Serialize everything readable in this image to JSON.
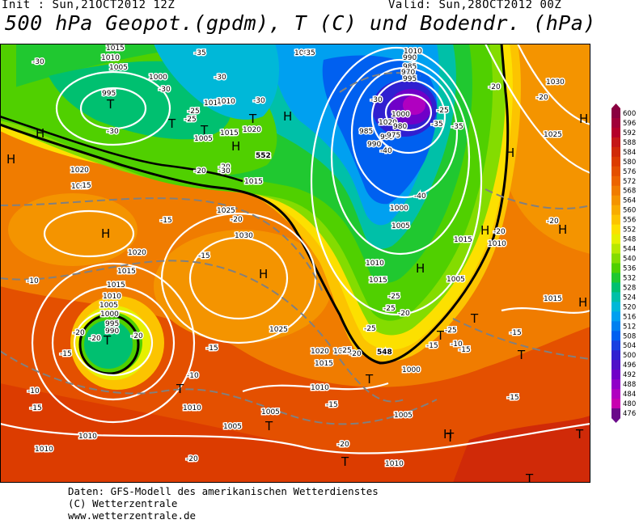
{
  "header": {
    "init": "Init : Sun,21OCT2012 12Z",
    "valid": "Valid: Sun,28OCT2012 00Z",
    "title": "500 hPa Geopot.(gpdm), T (C) und Bodendr. (hPa)"
  },
  "footer": {
    "line1": "Daten: GFS-Modell des amerikanischen Wetterdienstes",
    "line2": "(C) Wetterzentrale",
    "line3": "www.wetterzentrale.de"
  },
  "legend": {
    "labels": [
      "600",
      "596",
      "592",
      "588",
      "584",
      "580",
      "576",
      "572",
      "568",
      "564",
      "560",
      "556",
      "552",
      "548",
      "544",
      "540",
      "536",
      "532",
      "528",
      "524",
      "520",
      "516",
      "512",
      "508",
      "504",
      "500",
      "496",
      "492",
      "488",
      "484",
      "480",
      "476"
    ],
    "colors": [
      "#8a0040",
      "#a00038",
      "#b4002a",
      "#c41818",
      "#d02a08",
      "#dc3c00",
      "#e45000",
      "#ec6400",
      "#f07c00",
      "#f49400",
      "#f8ac00",
      "#fcc400",
      "#fce000",
      "#e6f000",
      "#b8e800",
      "#84dc00",
      "#50d000",
      "#20c830",
      "#00c070",
      "#00c0a8",
      "#00b8d8",
      "#00a0f0",
      "#0080f0",
      "#0060f0",
      "#1840e0",
      "#3020d0",
      "#5010c8",
      "#7000c8",
      "#9000c8",
      "#b000c0",
      "#c800b0",
      "#6a0a8a"
    ]
  },
  "map": {
    "pressure_systems": [
      {
        "type": "T",
        "label": "T"
      },
      {
        "type": "T",
        "label": "T"
      },
      {
        "type": "T",
        "label": "T"
      },
      {
        "type": "T",
        "label": "T"
      },
      {
        "type": "T",
        "label": "T"
      },
      {
        "type": "T",
        "label": "T"
      },
      {
        "type": "T",
        "label": "T"
      },
      {
        "type": "T",
        "label": "T"
      },
      {
        "type": "T",
        "label": "T"
      },
      {
        "type": "T",
        "label": "T"
      },
      {
        "type": "T",
        "label": "T"
      },
      {
        "type": "T",
        "label": "T"
      },
      {
        "type": "T",
        "label": "T"
      },
      {
        "type": "T",
        "label": "T"
      },
      {
        "type": "T",
        "label": "T"
      },
      {
        "type": "H",
        "label": "H"
      },
      {
        "type": "H",
        "label": "H"
      },
      {
        "type": "H",
        "label": "H"
      },
      {
        "type": "H",
        "label": "H"
      },
      {
        "type": "H",
        "label": "H"
      },
      {
        "type": "H",
        "label": "H"
      },
      {
        "type": "H",
        "label": "H"
      },
      {
        "type": "H",
        "label": "H"
      },
      {
        "type": "H",
        "label": "H"
      },
      {
        "type": "H",
        "label": "H"
      },
      {
        "type": "H",
        "label": "H"
      },
      {
        "type": "H",
        "label": "H"
      },
      {
        "type": "H",
        "label": "H"
      }
    ],
    "isobar_labels": [
      "1015",
      "1010",
      "1005",
      "1000",
      "995",
      "1010",
      "1005",
      "1010",
      "1015",
      "1020",
      "1015",
      "1025",
      "1030",
      "1020",
      "1015",
      "1025",
      "1020",
      "1015",
      "1010",
      "1005",
      "1000",
      "995",
      "990",
      "1025",
      "1020",
      "1015",
      "1010",
      "1005",
      "1010",
      "1005",
      "1010",
      "1010",
      "1005",
      "995",
      "990",
      "985",
      "1000",
      "1005",
      "1010",
      "1015",
      "1020",
      "1000",
      "1005",
      "1015",
      "1010",
      "1005",
      "1030",
      "1025",
      "1015",
      "1010",
      "1020",
      "1000",
      "1010",
      "990",
      "985",
      "980",
      "975",
      "970",
      "995",
      "990"
    ],
    "temperature_labels": [
      "-30",
      "-35",
      "-30",
      "-30",
      "-25",
      "-30",
      "-25",
      "-20",
      "-15",
      "-20",
      "-15",
      "-15",
      "-10",
      "-20",
      "-20",
      "-20",
      "-15",
      "-15",
      "-10",
      "-10",
      "-20",
      "-25",
      "-25",
      "-15",
      "-20",
      "-15",
      "-10",
      "-15",
      "-20",
      "-35",
      "-30",
      "-40",
      "-30",
      "-35",
      "-40",
      "-35",
      "-25",
      "-25",
      "-20",
      "-15",
      "-15",
      "-20",
      "-20",
      "-15",
      "-20",
      "-20",
      "-25",
      "-20",
      "-25",
      "-30"
    ],
    "geopotential_labels": [
      "552",
      "548"
    ]
  }
}
